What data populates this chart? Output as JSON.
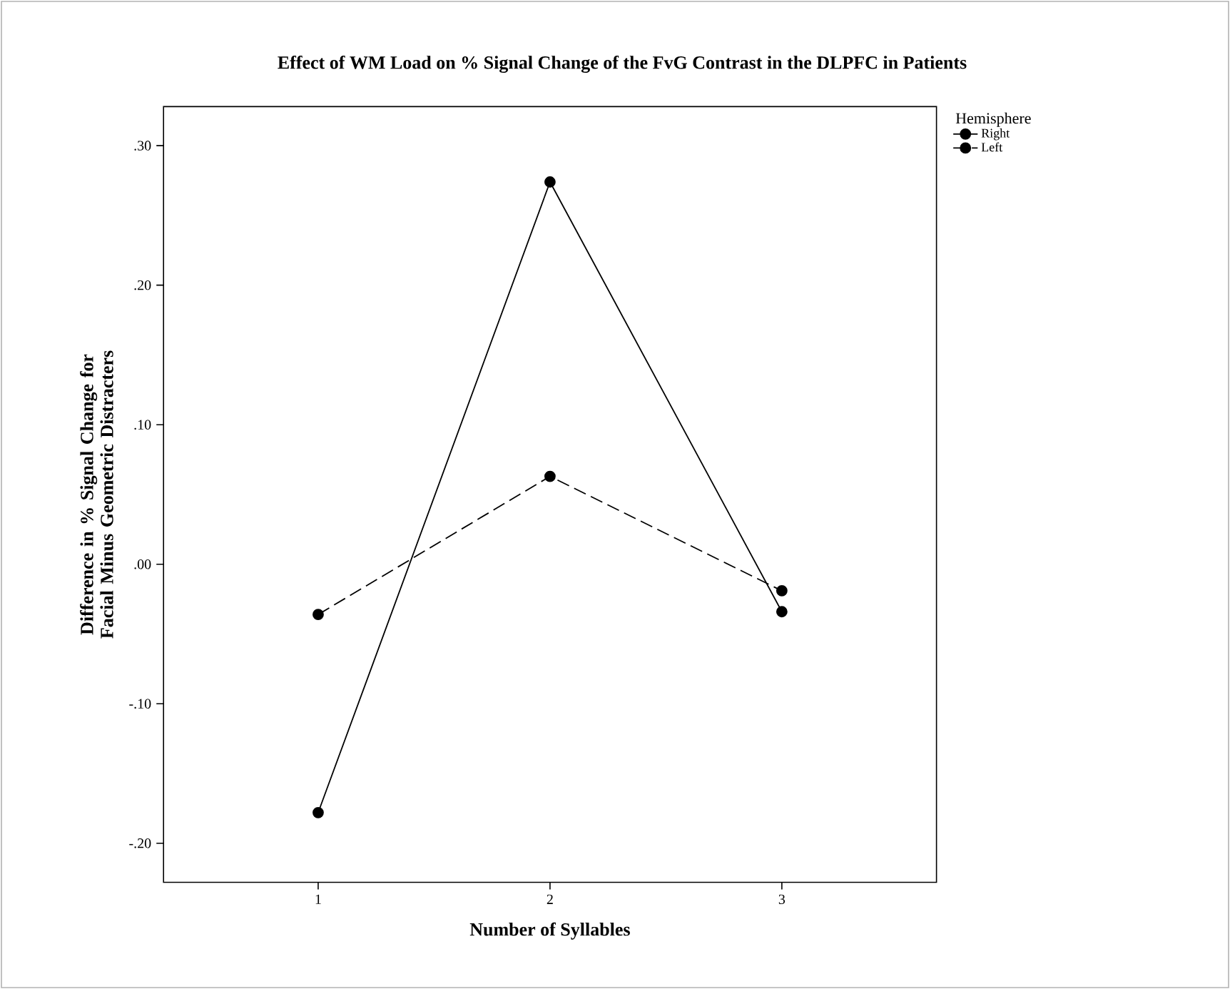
{
  "chart_data": {
    "type": "line",
    "title": "Effect of WM Load on % Signal Change of the FvG Contrast in the DLPFC in Patients",
    "xlabel": "Number of Syllables",
    "ylabel": "Difference in % Signal Change for Facial Minus Geometric Distracters",
    "legend_title": "Hemisphere",
    "legend": "top right",
    "marker": "circle",
    "x": [
      1,
      2,
      3
    ],
    "series": [
      {
        "name": "Right",
        "color": "#000000",
        "line_style": "solid",
        "values": [
          -0.178,
          0.274,
          -0.034
        ]
      },
      {
        "name": "Left",
        "color": "#000000",
        "line_style": "dashed",
        "values": [
          -0.036,
          0.063,
          -0.019
        ]
      }
    ],
    "xlim": [
      0.333,
      3.667
    ],
    "xticks": [
      1,
      2,
      3
    ],
    "ylim": [
      -0.228,
      0.328
    ],
    "yticks": [
      {
        "value": -0.2,
        "label": "-.20"
      },
      {
        "value": -0.1,
        "label": "-.10"
      },
      {
        "value": 0,
        "label": ".00"
      },
      {
        "value": 0.1,
        "label": ".10"
      },
      {
        "value": 0.2,
        "label": ".20"
      },
      {
        "value": 0.3,
        "label": ".30"
      }
    ],
    "grid": false
  }
}
